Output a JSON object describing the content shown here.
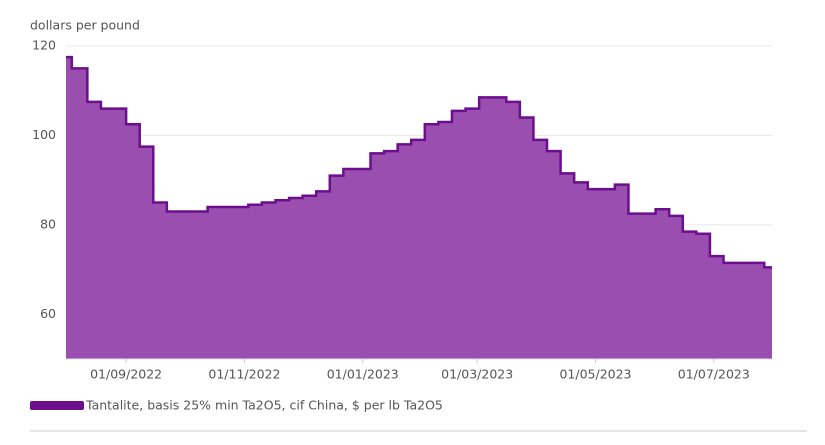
{
  "chart_data": {
    "type": "step-area",
    "y_label": "dollars per pound",
    "x": [
      "2022-08-01",
      "2022-08-04",
      "2022-08-12",
      "2022-08-19",
      "2022-09-01",
      "2022-09-08",
      "2022-09-15",
      "2022-09-22",
      "2022-10-13",
      "2022-11-03",
      "2022-11-10",
      "2022-11-17",
      "2022-11-24",
      "2022-12-01",
      "2022-12-08",
      "2022-12-15",
      "2022-12-22",
      "2023-01-05",
      "2023-01-12",
      "2023-01-19",
      "2023-01-26",
      "2023-02-02",
      "2023-02-09",
      "2023-02-16",
      "2023-02-23",
      "2023-03-02",
      "2023-03-16",
      "2023-03-23",
      "2023-03-30",
      "2023-04-06",
      "2023-04-13",
      "2023-04-20",
      "2023-04-27",
      "2023-05-11",
      "2023-05-18",
      "2023-06-01",
      "2023-06-08",
      "2023-06-15",
      "2023-06-22",
      "2023-06-29",
      "2023-07-06",
      "2023-07-27"
    ],
    "series": [
      {
        "name": "Tantalite, basis 25% min Ta2O5, cif China, $ per lb Ta2O5",
        "color": "#6b0f8c",
        "fill": "#9a4fb0",
        "values": [
          117.5,
          115,
          107.5,
          106,
          102.5,
          97.5,
          85,
          83,
          84,
          84.5,
          85,
          85.5,
          86,
          86.5,
          87.5,
          91,
          92.5,
          96,
          96.5,
          98,
          99,
          102.5,
          103,
          105.5,
          106,
          108.5,
          107.5,
          104,
          99,
          96.5,
          91.5,
          89.5,
          88,
          89,
          82.5,
          83.5,
          82,
          78.5,
          78,
          73,
          71.5,
          70.5
        ]
      }
    ],
    "xlim": [
      "2022-08-01",
      "2023-07-31"
    ],
    "xticks": [
      {
        "value": "2022-09-01",
        "label": "01/09/2022"
      },
      {
        "value": "2022-11-01",
        "label": "01/11/2022"
      },
      {
        "value": "2023-01-01",
        "label": "01/01/2023"
      },
      {
        "value": "2023-03-01",
        "label": "01/03/2023"
      },
      {
        "value": "2023-05-01",
        "label": "01/05/2023"
      },
      {
        "value": "2023-07-01",
        "label": "01/07/2023"
      }
    ],
    "ylim": [
      50,
      120
    ],
    "yticks": [
      60,
      80,
      100,
      120
    ],
    "grid": true
  }
}
